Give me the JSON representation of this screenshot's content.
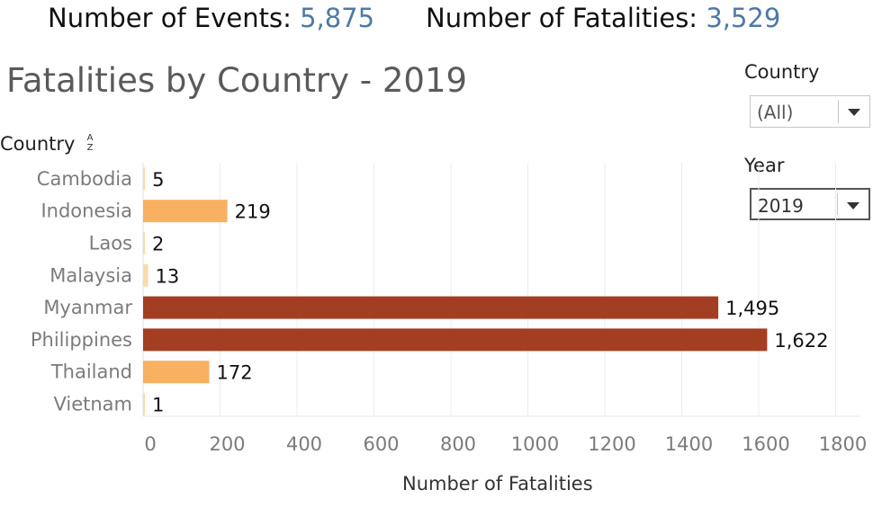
{
  "kpis": {
    "events_label": "Number of Events:",
    "events_value": "5,875",
    "fatalities_label": "Number of Fatalities:",
    "fatalities_value": "3,529"
  },
  "title": "Fatalities by Country - 2019",
  "filters": {
    "country_label": "Country",
    "country_value": "(All)",
    "year_label": "Year",
    "year_value": "2019"
  },
  "axis_header": "Country",
  "colors": {
    "low": "#f8b160",
    "high": "#a33e22",
    "pale": "#fcd9ab"
  },
  "chart_data": {
    "type": "bar",
    "orientation": "horizontal",
    "categories": [
      "Cambodia",
      "Indonesia",
      "Laos",
      "Malaysia",
      "Myanmar",
      "Philippines",
      "Thailand",
      "Vietnam"
    ],
    "values": [
      5,
      219,
      2,
      13,
      1495,
      1622,
      172,
      1
    ],
    "value_labels": [
      "5",
      "219",
      "2",
      "13",
      "1,495",
      "1,622",
      "172",
      "1"
    ],
    "xlabel": "Number of Fatalities",
    "ylabel": "Country",
    "xlim": [
      0,
      1800
    ],
    "xticks": [
      0,
      200,
      400,
      600,
      800,
      1000,
      1200,
      1400,
      1600,
      1800
    ],
    "grid": true
  }
}
